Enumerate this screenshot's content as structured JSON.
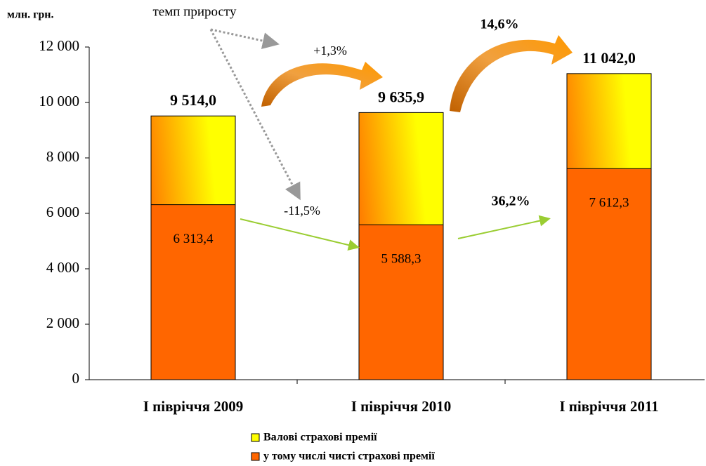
{
  "chart_data": {
    "type": "bar",
    "overlap": true,
    "unit_label": "млн. грн.",
    "categories": [
      "І півріччя 2009",
      "І півріччя 2010",
      "І півріччя 2011"
    ],
    "series": [
      {
        "name": "Валові страхові премії",
        "color": "#ffff00",
        "values": [
          9514.0,
          9635.9,
          11042.0
        ],
        "value_labels": [
          "9 514,0",
          "9 635,9",
          "11 042,0"
        ]
      },
      {
        "name": "у тому числі чисті страхові премії",
        "color": "#ff6600",
        "values": [
          6313.4,
          5588.3,
          7612.3
        ],
        "value_labels": [
          "6 313,4",
          "5 588,3",
          "7 612,3"
        ]
      }
    ],
    "ylim": [
      0,
      12000
    ],
    "yticks": [
      0,
      {
        "value": 2000,
        "label": "2 000"
      },
      {
        "value": 4000,
        "label": "4 000"
      },
      {
        "value": 6000,
        "label": "6 000"
      },
      {
        "value": 8000,
        "label": "8 000"
      },
      {
        "value": 10000,
        "label": "10 000"
      },
      {
        "value": 12000,
        "label": "12 000"
      }
    ],
    "annotations": [
      "темп приросту",
      "+1,3%",
      "14,6%",
      "-11,5%",
      "36,2%"
    ]
  }
}
